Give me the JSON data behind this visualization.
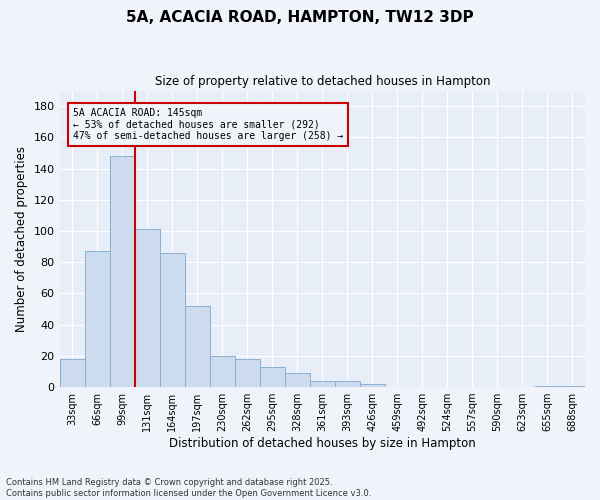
{
  "title": "5A, ACACIA ROAD, HAMPTON, TW12 3DP",
  "subtitle": "Size of property relative to detached houses in Hampton",
  "xlabel": "Distribution of detached houses by size in Hampton",
  "ylabel": "Number of detached properties",
  "categories": [
    "33sqm",
    "66sqm",
    "99sqm",
    "131sqm",
    "164sqm",
    "197sqm",
    "230sqm",
    "262sqm",
    "295sqm",
    "328sqm",
    "361sqm",
    "393sqm",
    "426sqm",
    "459sqm",
    "492sqm",
    "524sqm",
    "557sqm",
    "590sqm",
    "623sqm",
    "655sqm",
    "688sqm"
  ],
  "values": [
    18,
    87,
    148,
    101,
    86,
    52,
    20,
    18,
    13,
    9,
    4,
    4,
    2,
    0,
    0,
    0,
    0,
    0,
    0,
    1,
    1
  ],
  "bar_color": "#ccdcee",
  "bar_edge_color": "#8ab0d0",
  "background_color": "#f0f4fa",
  "plot_bg_color": "#e8eef8",
  "property_line_color": "#cc0000",
  "property_line_x": 2.5,
  "annotation_line1": "5A ACACIA ROAD: 145sqm",
  "annotation_line2": "← 53% of detached houses are smaller (292)",
  "annotation_line3": "47% of semi-detached houses are larger (258) →",
  "annotation_box_color": "#cc0000",
  "ylim": [
    0,
    190
  ],
  "yticks": [
    0,
    20,
    40,
    60,
    80,
    100,
    120,
    140,
    160,
    180
  ],
  "footer_text": "Contains HM Land Registry data © Crown copyright and database right 2025.\nContains public sector information licensed under the Open Government Licence v3.0.",
  "grid_color": "#ffffff",
  "figsize": [
    6.0,
    5.0
  ],
  "dpi": 100
}
